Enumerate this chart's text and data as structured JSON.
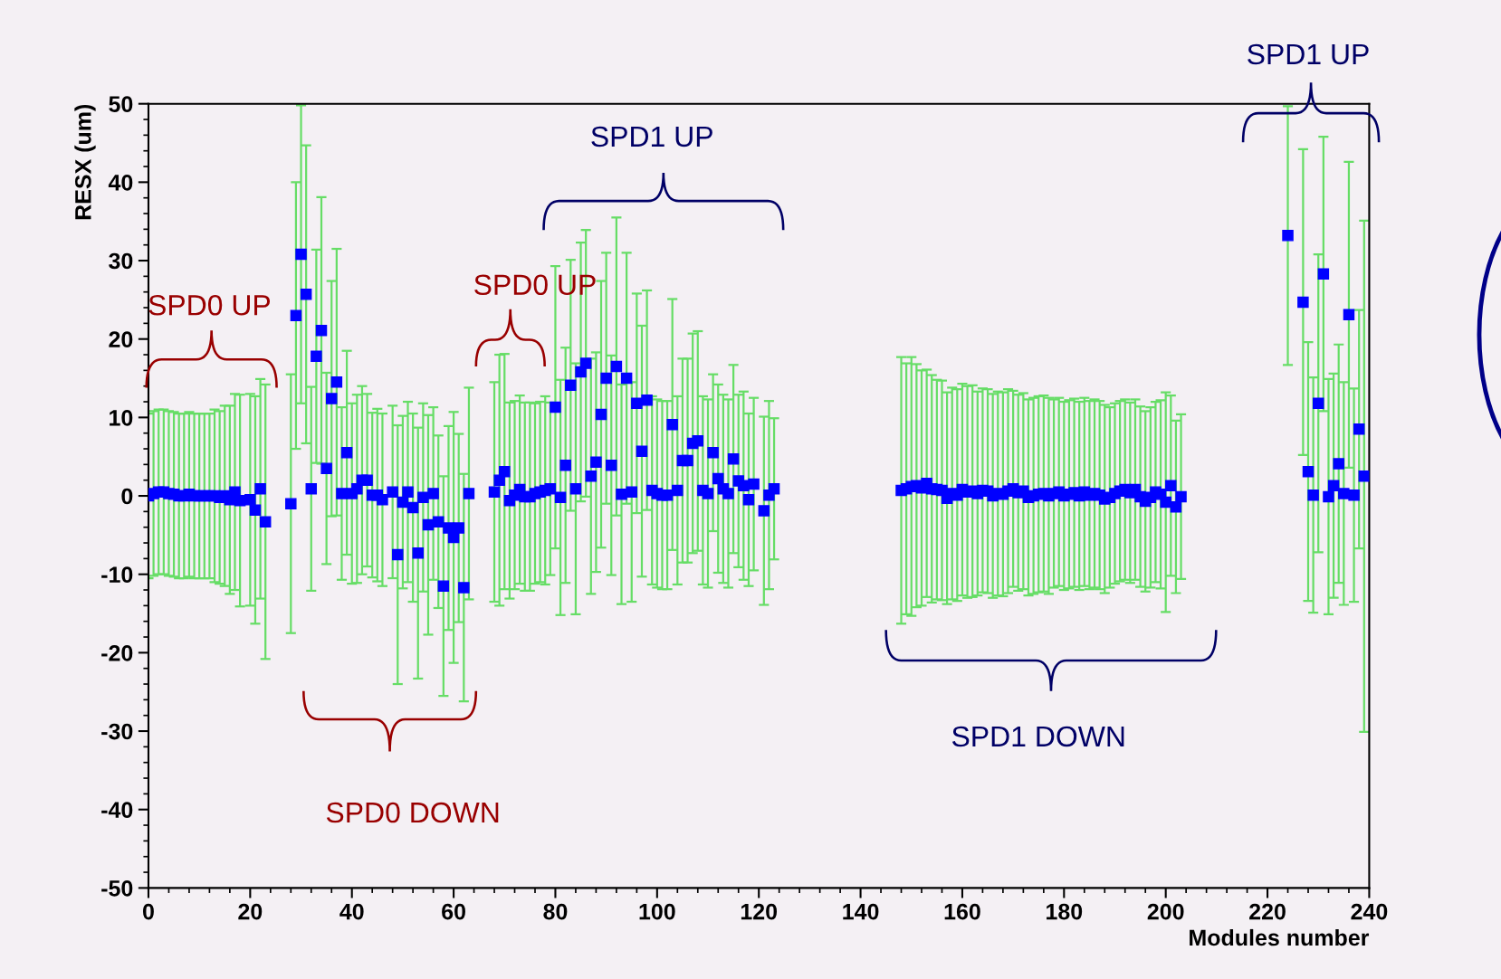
{
  "chart_data": {
    "type": "scatter",
    "xlabel": "Modules number",
    "ylabel": "RESX (um)",
    "x": [
      0,
      1,
      2,
      3,
      4,
      5,
      6,
      7,
      8,
      9,
      10,
      11,
      12,
      13,
      14,
      15,
      16,
      17,
      18,
      20,
      21,
      22,
      23,
      28,
      29,
      30,
      31,
      32,
      33,
      34,
      35,
      36,
      37,
      38,
      39,
      40,
      41,
      42,
      43,
      44,
      45,
      46,
      48,
      49,
      50,
      51,
      52,
      53,
      54,
      55,
      56,
      57,
      58,
      59,
      60,
      61,
      62,
      63,
      68,
      69,
      70,
      71,
      72,
      73,
      74,
      75,
      76,
      77,
      78,
      79,
      80,
      81,
      82,
      83,
      84,
      85,
      86,
      87,
      88,
      89,
      90,
      91,
      92,
      93,
      94,
      95,
      96,
      97,
      98,
      99,
      100,
      101,
      102,
      103,
      104,
      105,
      106,
      107,
      108,
      109,
      110,
      111,
      112,
      113,
      114,
      115,
      116,
      117,
      118,
      119,
      121,
      122,
      123,
      148,
      149,
      150,
      151,
      152,
      153,
      154,
      155,
      156,
      157,
      158,
      159,
      160,
      161,
      162,
      163,
      164,
      165,
      166,
      167,
      168,
      169,
      170,
      171,
      172,
      173,
      174,
      175,
      176,
      177,
      178,
      179,
      180,
      181,
      182,
      183,
      184,
      185,
      186,
      187,
      188,
      189,
      190,
      191,
      192,
      193,
      194,
      195,
      196,
      197,
      198,
      199,
      200,
      201,
      202,
      203,
      224,
      227,
      228,
      229,
      230,
      231,
      232,
      233,
      234,
      235,
      236,
      237,
      238,
      239
    ],
    "series": [
      {
        "color": "#0000ff",
        "values": [
          0,
          0.3,
          0.5,
          0.5,
          0.3,
          0.2,
          0,
          0,
          0.2,
          0,
          0,
          0,
          0,
          0,
          -0.2,
          0,
          -0.5,
          0.5,
          -0.6,
          -0.5,
          -1.8,
          0.9,
          -3.3,
          -1,
          23,
          30.8,
          25.7,
          0.9,
          17.8,
          21.1,
          3.5,
          12.4,
          14.5,
          0.3,
          5.5,
          0.3,
          0.9,
          2,
          2,
          0.1,
          0.1,
          -0.5,
          0.5,
          -7.5,
          -0.8,
          0.5,
          -1.5,
          -7.3,
          -0.2,
          -3.7,
          0.3,
          -3.3,
          -11.5,
          -4.1,
          -5.3,
          -4.1,
          -11.7,
          0.3,
          0.5,
          2.0,
          3.1,
          -0.6,
          0.1,
          0.8,
          -0.1,
          -0.1,
          0.3,
          0.5,
          0.7,
          0.9,
          11.3,
          -0.2,
          3.9,
          14.1,
          0.9,
          15.8,
          16.9,
          2.5,
          4.3,
          10.4,
          15.0,
          3.9,
          16.5,
          0.2,
          15.0,
          0.5,
          11.8,
          5.7,
          12.2,
          0.7,
          0.3,
          0.1,
          0.1,
          9.1,
          0.7,
          4.5,
          4.5,
          6.7,
          7.0,
          0.7,
          0.3,
          5.5,
          2.2,
          0.9,
          0.3,
          4.7,
          1.9,
          1.3,
          -0.5,
          1.5,
          -1.9,
          0.1,
          0.9,
          0.7,
          0.9,
          1.2,
          1.3,
          1.0,
          1.6,
          0.9,
          0.8,
          0.7,
          -0.3,
          0.3,
          0.1,
          0.8,
          0.5,
          0.6,
          0.3,
          0.7,
          0.6,
          0.0,
          0.3,
          0.2,
          0.6,
          0.9,
          0.4,
          0.6,
          -0.2,
          0.0,
          0.2,
          0.3,
          0.0,
          0.3,
          0.5,
          0.0,
          0.2,
          0.4,
          0.0,
          0.5,
          0.1,
          0.3,
          0.1,
          -0.4,
          -0.2,
          0.3,
          0.6,
          0.8,
          0.4,
          0.8,
          -0.1,
          -0.7,
          -0.2,
          0.5,
          0.2,
          -0.8,
          1.3,
          -1.4,
          -0.1,
          33.2,
          24.7,
          3.1,
          0.1,
          11.8,
          28.3,
          -0.1,
          1.3,
          4.1,
          0.3,
          23.1,
          0.1,
          8.5,
          2.5
        ],
        "errors": [
          10.5,
          10.5,
          10.5,
          10.5,
          10.5,
          10.5,
          10.5,
          10.5,
          10.5,
          10.5,
          10.5,
          10.5,
          10.5,
          11,
          11,
          11.5,
          12,
          12.5,
          13.5,
          13.5,
          14.5,
          14,
          17.5,
          16.5,
          17,
          19,
          19,
          13,
          13.6,
          17,
          12.2,
          15,
          17,
          11,
          13,
          11.5,
          12,
          12,
          11,
          10.5,
          11,
          11,
          11,
          16.5,
          11,
          11.5,
          12,
          16,
          12,
          14,
          11,
          11,
          14,
          13,
          16,
          12,
          14.5,
          13.5,
          14,
          16,
          15,
          12.5,
          12,
          12,
          12,
          12,
          11.5,
          11.5,
          12,
          11,
          18,
          15,
          15,
          16,
          16,
          16.5,
          17,
          15,
          14,
          17,
          16,
          14,
          19,
          14,
          16,
          14,
          14,
          16,
          14,
          12,
          12,
          12,
          12,
          16,
          12,
          13,
          13,
          14,
          14,
          12,
          12,
          10,
          12,
          12,
          12,
          12,
          11,
          12,
          11,
          11,
          12,
          12,
          9,
          17,
          16,
          16.5,
          15.5,
          15,
          14.5,
          14.5,
          14,
          14,
          13.5,
          13.5,
          13.5,
          13.5,
          13.5,
          13.5,
          13,
          13,
          13,
          13,
          13,
          13,
          13,
          12.5,
          12.5,
          12.5,
          12.5,
          12.5,
          12.5,
          12.5,
          12.5,
          12,
          12,
          12,
          12,
          12,
          12,
          12,
          12,
          12,
          12,
          12,
          11.5,
          11.5,
          11.5,
          11.5,
          11.5,
          11.5,
          11.5,
          11.5,
          11.5,
          11.5,
          12,
          14,
          11.5,
          11,
          10.5,
          16.5,
          19.5,
          16.5,
          15,
          19,
          17.5,
          15,
          14.3,
          15.2,
          14.2,
          19.5,
          13.6,
          15.2,
          32.6
        ]
      }
    ],
    "xlim": [
      0,
      240
    ],
    "xticks": [
      0,
      20,
      40,
      60,
      80,
      100,
      120,
      140,
      160,
      180,
      200,
      220,
      240
    ],
    "ylim": [
      -50,
      50
    ],
    "yticks": [
      -50,
      -40,
      -30,
      -20,
      -10,
      0,
      10,
      20,
      30,
      40,
      50
    ],
    "marker": "square",
    "grid": false,
    "legend": false,
    "annotations": [
      "SPD0 UP",
      "SPD0 UP",
      "SPD1 UP",
      "SPD0 DOWN",
      "SPD1 DOWN",
      "SPD1 UP"
    ]
  }
}
